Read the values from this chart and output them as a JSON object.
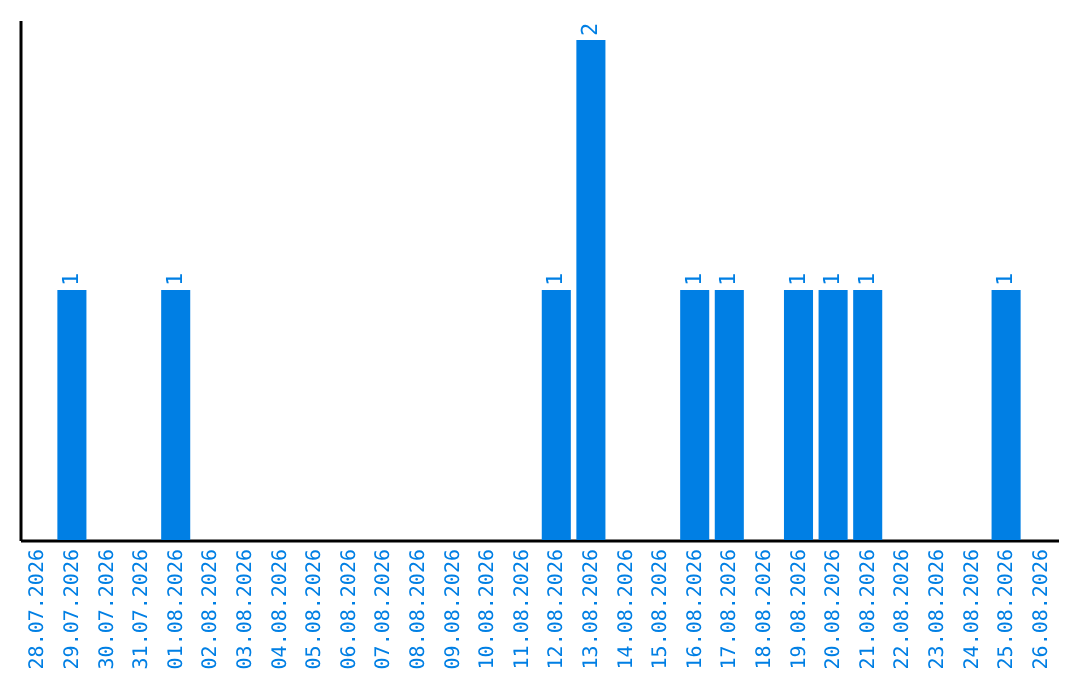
{
  "chart_data": {
    "type": "bar",
    "categories": [
      "28.07.2026",
      "29.07.2026",
      "30.07.2026",
      "31.07.2026",
      "01.08.2026",
      "02.08.2026",
      "03.08.2026",
      "04.08.2026",
      "05.08.2026",
      "06.08.2026",
      "07.08.2026",
      "08.08.2026",
      "09.08.2026",
      "10.08.2026",
      "11.08.2026",
      "12.08.2026",
      "13.08.2026",
      "14.08.2026",
      "15.08.2026",
      "16.08.2026",
      "17.08.2026",
      "18.08.2026",
      "19.08.2026",
      "20.08.2026",
      "21.08.2026",
      "22.08.2026",
      "23.08.2026",
      "24.08.2026",
      "25.08.2026",
      "26.08.2026"
    ],
    "values": [
      0,
      1,
      0,
      0,
      1,
      0,
      0,
      0,
      0,
      0,
      0,
      0,
      0,
      0,
      0,
      1,
      2,
      0,
      0,
      1,
      1,
      0,
      1,
      1,
      1,
      0,
      0,
      0,
      1,
      0
    ],
    "value_labels": [
      null,
      "1",
      null,
      null,
      "1",
      null,
      null,
      null,
      null,
      null,
      null,
      null,
      null,
      null,
      null,
      "1",
      "2",
      null,
      null,
      "1",
      "1",
      null,
      "1",
      "1",
      "1",
      null,
      null,
      null,
      "1",
      null
    ],
    "color": "#007fe4",
    "ylim": [
      0,
      2.08
    ],
    "tick_labels": "x",
    "grid": false
  }
}
